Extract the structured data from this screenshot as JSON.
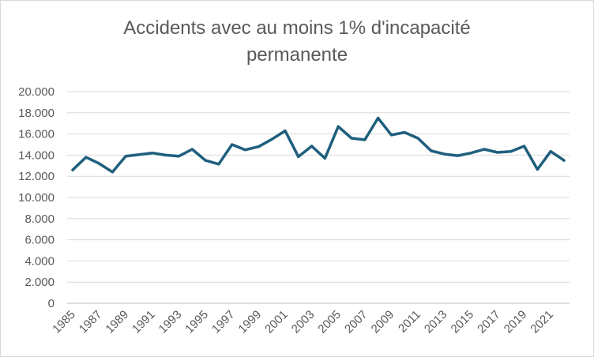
{
  "chart_data": {
    "type": "line",
    "title_lines": [
      "Accidents avec au moins 1% d'incapacité",
      "permanente"
    ],
    "xlabel": "",
    "ylabel": "",
    "ylim": [
      0,
      20000
    ],
    "y_ticks": [
      0,
      2000,
      4000,
      6000,
      8000,
      10000,
      12000,
      14000,
      16000,
      18000,
      20000
    ],
    "y_tick_labels": [
      "0",
      "2.000",
      "4.000",
      "6.000",
      "8.000",
      "10.000",
      "12.000",
      "14.000",
      "16.000",
      "18.000",
      "20.000"
    ],
    "x": [
      1985,
      1986,
      1987,
      1988,
      1989,
      1990,
      1991,
      1992,
      1993,
      1994,
      1995,
      1996,
      1997,
      1998,
      1999,
      2000,
      2001,
      2002,
      2003,
      2004,
      2005,
      2006,
      2007,
      2008,
      2009,
      2010,
      2011,
      2012,
      2013,
      2014,
      2015,
      2016,
      2017,
      2018,
      2019,
      2020,
      2021,
      2022
    ],
    "x_tick_labels": [
      "1985",
      "1987",
      "1989",
      "1991",
      "1993",
      "1995",
      "1997",
      "1999",
      "2001",
      "2003",
      "2005",
      "2007",
      "2009",
      "2011",
      "2013",
      "2015",
      "2017",
      "2019",
      "2021"
    ],
    "series": [
      {
        "values": [
          12600,
          13800,
          13200,
          12400,
          13900,
          14050,
          14200,
          14000,
          13900,
          14550,
          13500,
          13150,
          15000,
          14500,
          14800,
          15500,
          16300,
          13850,
          14850,
          13700,
          16700,
          15600,
          15450,
          17500,
          15900,
          16150,
          15600,
          14400,
          14100,
          13950,
          14200,
          14550,
          14250,
          14350,
          14850,
          12650,
          14350,
          13500
        ]
      }
    ],
    "grid": true,
    "legend": "none",
    "colors": {
      "line": "#1f5f7e",
      "grid": "#d9d9d9",
      "text": "#595959",
      "axis": "#bfbfbf"
    }
  }
}
